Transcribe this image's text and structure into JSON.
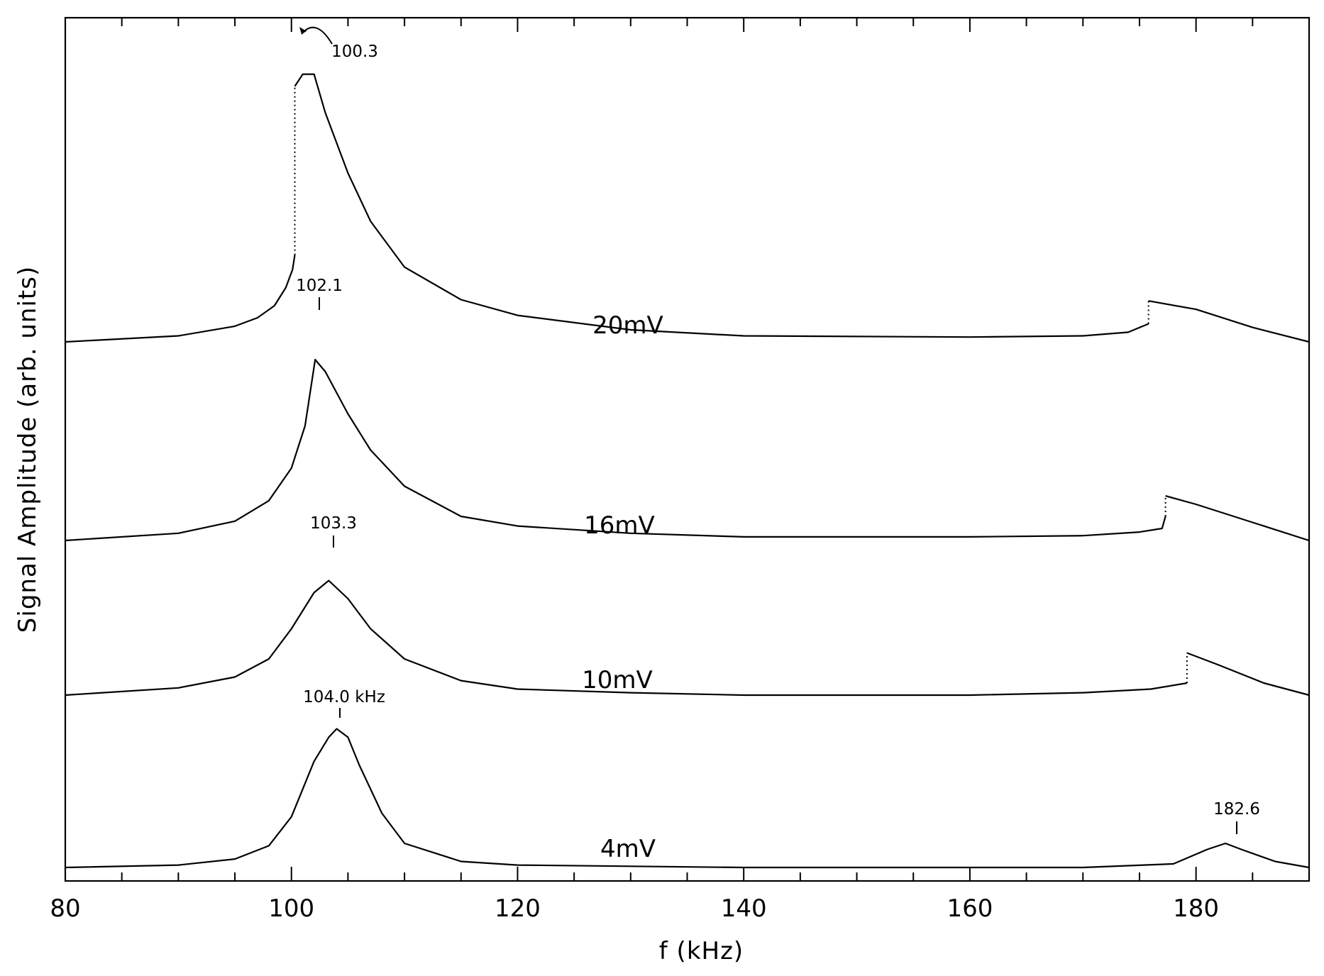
{
  "chart_data": {
    "type": "line",
    "xlabel": "f  (kHz)",
    "ylabel": "Signal Amplitude  (arb. units)",
    "xlim": [
      80,
      190
    ],
    "x_ticks": [
      80,
      100,
      120,
      140,
      160,
      180
    ],
    "x_tick_labels": [
      "80",
      "100",
      "120",
      "140",
      "160",
      "180"
    ],
    "grid": false,
    "series": [
      {
        "name": "20mV",
        "peak_label": "100.3",
        "peak_x": 100.3,
        "points": [
          [
            80,
            0.0
          ],
          [
            90,
            0.05
          ],
          [
            95,
            0.13
          ],
          [
            97,
            0.2
          ],
          [
            98.5,
            0.3
          ],
          [
            99.5,
            0.45
          ],
          [
            100.1,
            0.6
          ],
          [
            100.3,
            0.72
          ],
          [
            100.3,
            2.12
          ],
          [
            101,
            2.22
          ],
          [
            102,
            2.22
          ],
          [
            103,
            1.9
          ],
          [
            105,
            1.4
          ],
          [
            107,
            1.0
          ],
          [
            110,
            0.62
          ],
          [
            115,
            0.35
          ],
          [
            120,
            0.22
          ],
          [
            130,
            0.1
          ],
          [
            140,
            0.05
          ],
          [
            160,
            0.04
          ],
          [
            170,
            0.05
          ],
          [
            174,
            0.08
          ],
          [
            175.8,
            0.15
          ],
          [
            175.8,
            0.34
          ],
          [
            180,
            0.27
          ],
          [
            185,
            0.12
          ],
          [
            190,
            0.0
          ]
        ]
      },
      {
        "name": "16mV",
        "peak_label": "102.1",
        "peak_x": 102.1,
        "points": [
          [
            80,
            0.0
          ],
          [
            90,
            0.06
          ],
          [
            95,
            0.16
          ],
          [
            98,
            0.33
          ],
          [
            100,
            0.6
          ],
          [
            101.2,
            0.95
          ],
          [
            102.1,
            1.5
          ],
          [
            103,
            1.4
          ],
          [
            105,
            1.05
          ],
          [
            107,
            0.75
          ],
          [
            110,
            0.45
          ],
          [
            115,
            0.2
          ],
          [
            120,
            0.12
          ],
          [
            130,
            0.06
          ],
          [
            140,
            0.03
          ],
          [
            160,
            0.03
          ],
          [
            170,
            0.04
          ],
          [
            175,
            0.07
          ],
          [
            177,
            0.1
          ],
          [
            177.3,
            0.2
          ],
          [
            177.3,
            0.37
          ],
          [
            180,
            0.3
          ],
          [
            185,
            0.15
          ],
          [
            190,
            0.0
          ]
        ]
      },
      {
        "name": "10mV",
        "peak_label": "103.3",
        "peak_x": 103.3,
        "points": [
          [
            80,
            0.0
          ],
          [
            90,
            0.06
          ],
          [
            95,
            0.15
          ],
          [
            98,
            0.3
          ],
          [
            100,
            0.55
          ],
          [
            102,
            0.85
          ],
          [
            103.3,
            0.95
          ],
          [
            105,
            0.8
          ],
          [
            107,
            0.55
          ],
          [
            110,
            0.3
          ],
          [
            115,
            0.12
          ],
          [
            120,
            0.05
          ],
          [
            130,
            0.02
          ],
          [
            140,
            0.0
          ],
          [
            160,
            0.0
          ],
          [
            170,
            0.02
          ],
          [
            176,
            0.05
          ],
          [
            179.2,
            0.1
          ],
          [
            179.2,
            0.35
          ],
          [
            182,
            0.25
          ],
          [
            186,
            0.1
          ],
          [
            190,
            0.0
          ]
        ]
      },
      {
        "name": "4mV",
        "peak_label": "104.0 kHz",
        "peak_x": 104.0,
        "points": [
          [
            80,
            0.0
          ],
          [
            90,
            0.02
          ],
          [
            95,
            0.07
          ],
          [
            98,
            0.18
          ],
          [
            100,
            0.42
          ],
          [
            102,
            0.88
          ],
          [
            103.3,
            1.08
          ],
          [
            104,
            1.15
          ],
          [
            105,
            1.08
          ],
          [
            106,
            0.85
          ],
          [
            108,
            0.45
          ],
          [
            110,
            0.2
          ],
          [
            115,
            0.05
          ],
          [
            120,
            0.02
          ],
          [
            140,
            0.0
          ],
          [
            170,
            0.0
          ],
          [
            178,
            0.03
          ],
          [
            181,
            0.15
          ],
          [
            182.6,
            0.2
          ],
          [
            184,
            0.15
          ],
          [
            187,
            0.05
          ],
          [
            190,
            0.0
          ]
        ]
      },
      {
        "name": "",
        "peak_label": "182.6",
        "peak_x": 182.6,
        "points": []
      }
    ]
  }
}
